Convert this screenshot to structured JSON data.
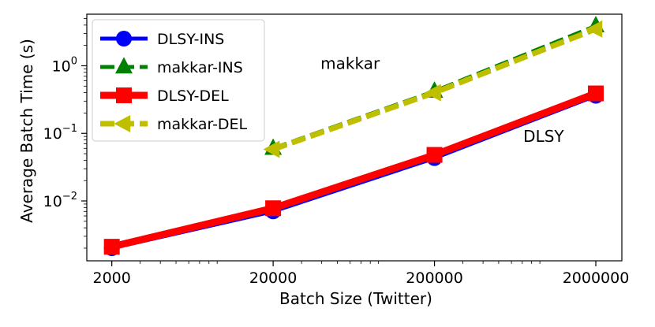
{
  "chart_data": {
    "type": "line",
    "xlabel": "Batch Size (Twitter)",
    "ylabel": "Average Batch Time (s)",
    "x_scale": "log",
    "y_scale": "log",
    "xlim": [
      1400,
      2900000
    ],
    "ylim": [
      0.0013,
      5.8
    ],
    "x_ticks": [
      {
        "value": 2000,
        "label": "2000"
      },
      {
        "value": 20000,
        "label": "20000"
      },
      {
        "value": 200000,
        "label": "200000"
      },
      {
        "value": 2000000,
        "label": "2000000"
      }
    ],
    "y_ticks": [
      {
        "value": 0.01,
        "base": "10",
        "exp": "−2"
      },
      {
        "value": 0.1,
        "base": "10",
        "exp": "−1"
      },
      {
        "value": 1,
        "base": "10",
        "exp": "0"
      }
    ],
    "grid": false,
    "legend_position": "top-left",
    "series": [
      {
        "name": "DLSY-INS",
        "color": "#0000ff",
        "marker": "circle",
        "dash": "solid",
        "width": 5,
        "x": [
          2000,
          20000,
          200000,
          2000000
        ],
        "y": [
          0.002,
          0.007,
          0.043,
          0.36
        ]
      },
      {
        "name": "makkar-INS",
        "color": "#008000",
        "marker": "triangle-up",
        "dash": "dashed",
        "width": 5,
        "x": [
          20000,
          200000,
          2000000
        ],
        "y": [
          0.06,
          0.42,
          3.9
        ]
      },
      {
        "name": "DLSY-DEL",
        "color": "#ff0000",
        "marker": "square",
        "dash": "solid",
        "width": 9,
        "x": [
          2000,
          20000,
          200000,
          2000000
        ],
        "y": [
          0.0021,
          0.0078,
          0.048,
          0.39
        ]
      },
      {
        "name": "makkar-DEL",
        "color": "#bfbf00",
        "marker": "triangle-left",
        "dash": "dashed",
        "width": 7,
        "x": [
          20000,
          200000,
          2000000
        ],
        "y": [
          0.058,
          0.4,
          3.5
        ]
      }
    ],
    "annotations": [
      {
        "text": "makkar",
        "x": 60000,
        "y": 0.9
      },
      {
        "text": "DLSY",
        "x": 950000,
        "y": 0.075
      }
    ]
  }
}
